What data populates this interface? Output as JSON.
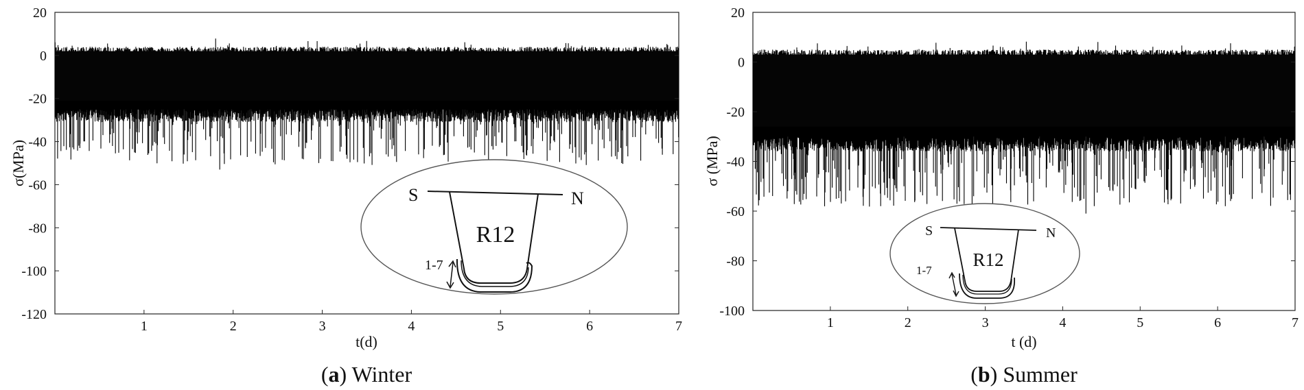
{
  "chart_data": [
    {
      "type": "line",
      "caption_letter": "a",
      "caption_text": " Winter",
      "xlabel": "t(d)",
      "ylabel": "σ(MPa)",
      "xlim": [
        0,
        7
      ],
      "ylim": [
        -120,
        20
      ],
      "xticks": [
        1,
        2,
        3,
        4,
        5,
        6,
        7
      ],
      "yticks": [
        20,
        0,
        -20,
        -40,
        -60,
        -80,
        -100,
        -120
      ],
      "signal": {
        "max": 4,
        "band_low": -25,
        "spike_floor": -53,
        "samples": 1500
      },
      "spikes": [
        {
          "x": 1.85,
          "y": -53
        },
        {
          "x": 3.1,
          "y": -49
        },
        {
          "x": 1.45,
          "y": -46
        },
        {
          "x": 5.3,
          "y": -44
        },
        {
          "x": 0.28,
          "y": -43
        },
        {
          "x": 6.35,
          "y": -42
        },
        {
          "x": 4.95,
          "y": -42
        },
        {
          "x": 2.2,
          "y": -40
        }
      ],
      "inset": {
        "left": "S",
        "right": "N",
        "center": "R12",
        "range": "1-7"
      }
    },
    {
      "type": "line",
      "caption_letter": "b",
      "caption_text": " Summer",
      "xlabel": "t (d)",
      "ylabel": "σ (MPa)",
      "xlim": [
        0,
        7
      ],
      "ylim": [
        -100,
        20
      ],
      "xticks": [
        1,
        2,
        3,
        4,
        5,
        6,
        7
      ],
      "yticks": [
        20,
        0,
        -20,
        -40,
        -60,
        -80,
        -100
      ],
      "signal": {
        "max": 5,
        "band_low": -30,
        "spike_floor": -61,
        "samples": 1500
      },
      "spikes": [
        {
          "x": 4.3,
          "y": -61
        },
        {
          "x": 6.1,
          "y": -58
        },
        {
          "x": 2.85,
          "y": -54
        },
        {
          "x": 0.45,
          "y": -52
        },
        {
          "x": 1.95,
          "y": -50
        },
        {
          "x": 5.05,
          "y": -48
        },
        {
          "x": 3.7,
          "y": -47
        },
        {
          "x": 6.6,
          "y": -46
        }
      ],
      "inset": {
        "left": "S",
        "right": "N",
        "center": "R12",
        "range": "1-7"
      }
    }
  ]
}
